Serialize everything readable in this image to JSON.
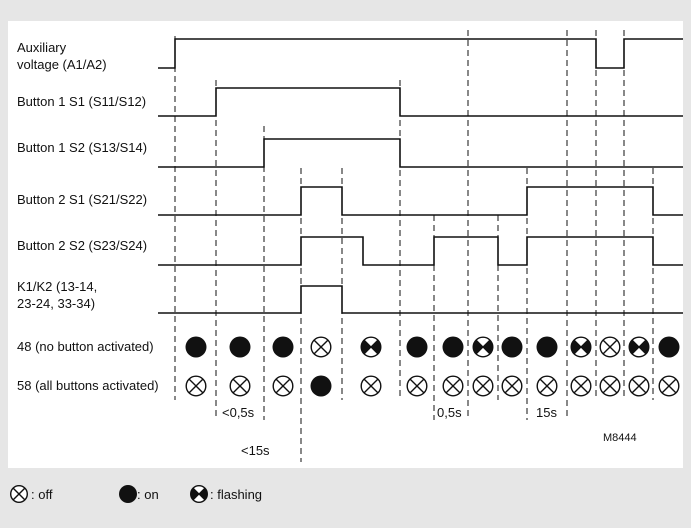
{
  "diagram": {
    "signals": [
      {
        "label_lines": [
          "Auxiliary",
          "voltage (A1/A2)"
        ],
        "name": "auxiliary-voltage"
      },
      {
        "label_lines": [
          "Button 1 S1 (S11/S12)"
        ],
        "name": "button1-s1"
      },
      {
        "label_lines": [
          "Button 1 S2 (S13/S14)"
        ],
        "name": "button1-s2"
      },
      {
        "label_lines": [
          "Button 2 S1 (S21/S22)"
        ],
        "name": "button2-s1"
      },
      {
        "label_lines": [
          "Button 2 S2 (S23/S24)"
        ],
        "name": "button2-s2"
      },
      {
        "label_lines": [
          "K1/K2 (13-14,",
          "23-24, 33-34)"
        ],
        "name": "k1-k2"
      }
    ],
    "indicator_rows": [
      {
        "label": "48 (no button activated)",
        "states": [
          "on",
          "on",
          "on",
          "off",
          "flashing",
          "on",
          "on",
          "flashing",
          "on",
          "on",
          "flashing",
          "off",
          "flashing",
          "on"
        ]
      },
      {
        "label": "58 (all buttons activated)",
        "states": [
          "off",
          "off",
          "off",
          "on",
          "off",
          "off",
          "off",
          "off",
          "off",
          "off",
          "off",
          "off",
          "off",
          "off"
        ]
      }
    ],
    "timing_annotations": [
      "<0,5s",
      "<15s",
      "0,5s",
      "15s"
    ],
    "reference_code": "M8444"
  },
  "legend": {
    "items": [
      {
        "state": "off",
        "label": ": off"
      },
      {
        "state": "on",
        "label": ": on"
      },
      {
        "state": "flashing",
        "label": ": flashing"
      }
    ]
  }
}
